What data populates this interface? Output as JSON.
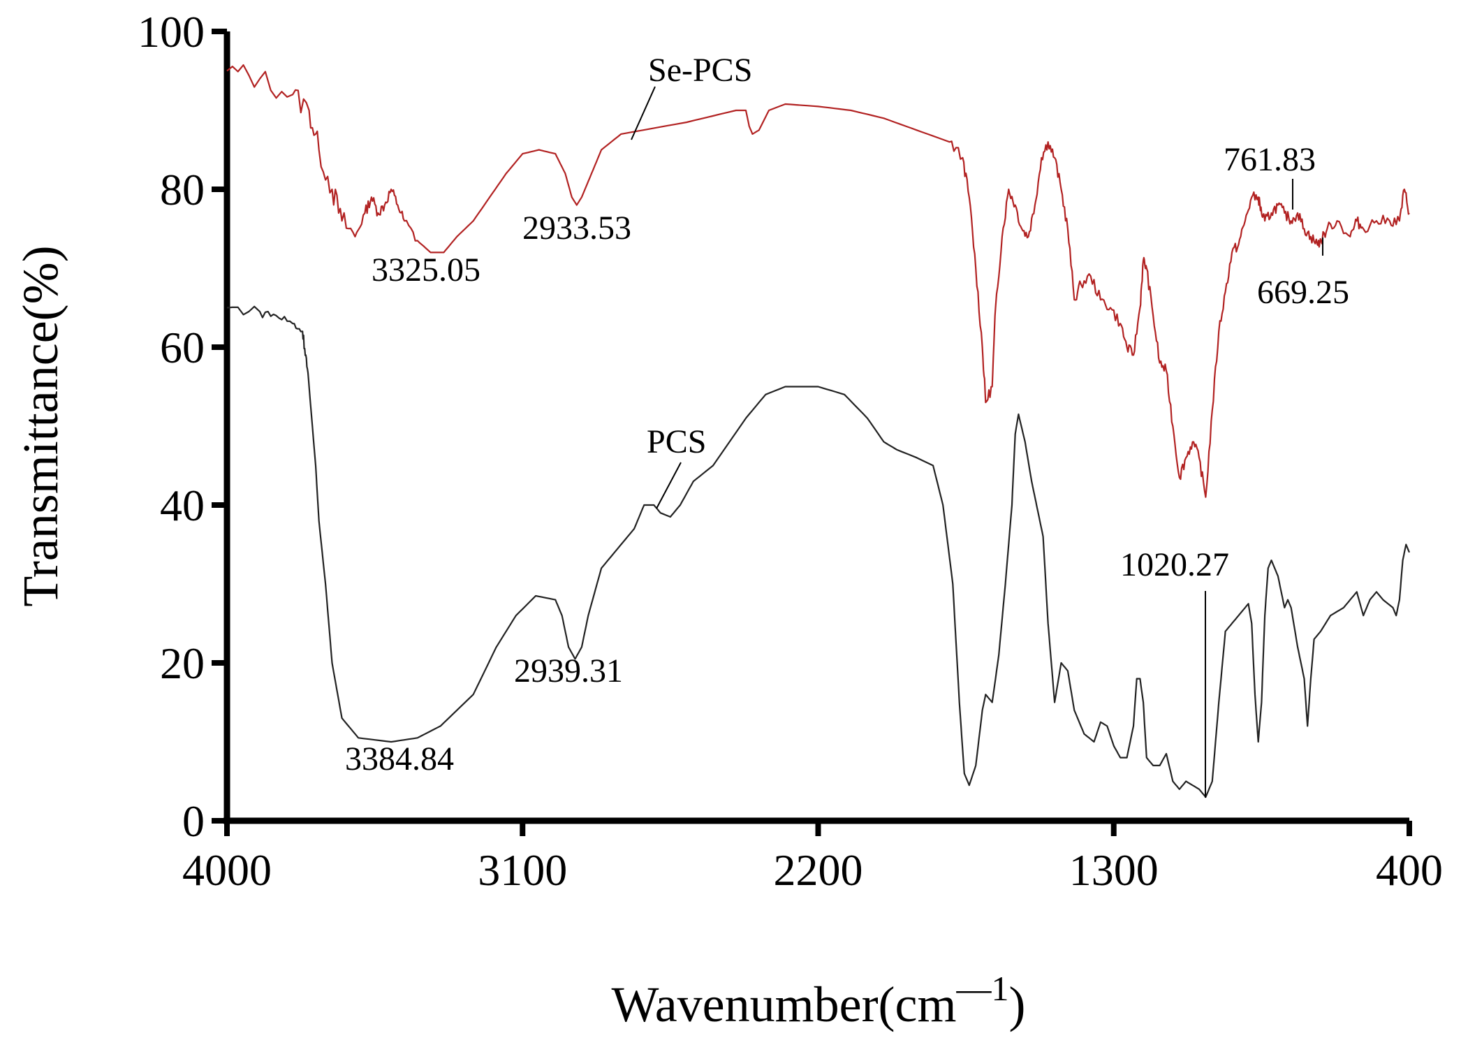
{
  "chart_data": {
    "type": "line",
    "xlabel": "Wavenumber(cm",
    "xlabel_sup": "—1",
    "xlabel_close": ")",
    "ylabel": "Transmittance(%)",
    "xlim": [
      4000,
      400
    ],
    "ylim": [
      0,
      100
    ],
    "x_reversed": true,
    "xticks": [
      4000,
      3100,
      2200,
      1300,
      400
    ],
    "yticks": [
      0,
      20,
      40,
      60,
      80,
      100
    ],
    "grid": false,
    "series": [
      {
        "name": "Se-PCS",
        "color": "#b22222",
        "points": [
          [
            4000,
            95
          ],
          [
            3900,
            94
          ],
          [
            3800,
            92
          ],
          [
            3750,
            90
          ],
          [
            3720,
            85
          ],
          [
            3680,
            80
          ],
          [
            3650,
            76
          ],
          [
            3610,
            74
          ],
          [
            3580,
            77
          ],
          [
            3560,
            79
          ],
          [
            3540,
            77
          ],
          [
            3520,
            78
          ],
          [
            3500,
            80
          ],
          [
            3480,
            78
          ],
          [
            3460,
            76
          ],
          [
            3420,
            73.5
          ],
          [
            3380,
            72
          ],
          [
            3340,
            72
          ],
          [
            3300,
            74
          ],
          [
            3250,
            76
          ],
          [
            3200,
            79
          ],
          [
            3150,
            82
          ],
          [
            3100,
            84.5
          ],
          [
            3050,
            85
          ],
          [
            3000,
            84.5
          ],
          [
            2970,
            82
          ],
          [
            2950,
            79
          ],
          [
            2935,
            78
          ],
          [
            2920,
            79
          ],
          [
            2890,
            82
          ],
          [
            2860,
            85
          ],
          [
            2800,
            87
          ],
          [
            2600,
            88.5
          ],
          [
            2450,
            90
          ],
          [
            2420,
            90
          ],
          [
            2410,
            88
          ],
          [
            2400,
            87
          ],
          [
            2380,
            87.5
          ],
          [
            2350,
            90
          ],
          [
            2300,
            90.8
          ],
          [
            2200,
            90.5
          ],
          [
            2100,
            90
          ],
          [
            2000,
            89
          ],
          [
            1900,
            87.5
          ],
          [
            1800,
            86
          ],
          [
            1760,
            84
          ],
          [
            1740,
            79
          ],
          [
            1720,
            70
          ],
          [
            1700,
            60
          ],
          [
            1690,
            53
          ],
          [
            1670,
            55
          ],
          [
            1660,
            65
          ],
          [
            1640,
            74
          ],
          [
            1620,
            80
          ],
          [
            1600,
            78
          ],
          [
            1580,
            75
          ],
          [
            1560,
            74
          ],
          [
            1540,
            78
          ],
          [
            1520,
            84
          ],
          [
            1500,
            86
          ],
          [
            1480,
            84
          ],
          [
            1460,
            80
          ],
          [
            1440,
            75
          ],
          [
            1420,
            66
          ],
          [
            1400,
            68
          ],
          [
            1370,
            69
          ],
          [
            1340,
            66
          ],
          [
            1310,
            65
          ],
          [
            1280,
            63
          ],
          [
            1260,
            60
          ],
          [
            1240,
            59
          ],
          [
            1220,
            65
          ],
          [
            1210,
            71
          ],
          [
            1200,
            70
          ],
          [
            1180,
            64
          ],
          [
            1160,
            58
          ],
          [
            1140,
            57
          ],
          [
            1120,
            50
          ],
          [
            1100,
            43.5
          ],
          [
            1080,
            46
          ],
          [
            1060,
            48
          ],
          [
            1040,
            46
          ],
          [
            1020,
            41
          ],
          [
            1000,
            52
          ],
          [
            980,
            62
          ],
          [
            960,
            67
          ],
          [
            940,
            72
          ],
          [
            920,
            73
          ],
          [
            900,
            76
          ],
          [
            880,
            79
          ],
          [
            860,
            79
          ],
          [
            850,
            77
          ],
          [
            840,
            76
          ],
          [
            820,
            77
          ],
          [
            800,
            78
          ],
          [
            780,
            77
          ],
          [
            760,
            76
          ],
          [
            740,
            77
          ],
          [
            720,
            75
          ],
          [
            700,
            74
          ],
          [
            680,
            73
          ],
          [
            669,
            73.5
          ],
          [
            650,
            75
          ],
          [
            620,
            76
          ],
          [
            580,
            74
          ],
          [
            560,
            76
          ],
          [
            540,
            75
          ],
          [
            500,
            76
          ],
          [
            460,
            76
          ],
          [
            430,
            76
          ],
          [
            415,
            80
          ],
          [
            400,
            77
          ]
        ]
      },
      {
        "name": "PCS",
        "color": "#222222",
        "points": [
          [
            4000,
            65
          ],
          [
            3900,
            64.5
          ],
          [
            3850,
            64
          ],
          [
            3800,
            63
          ],
          [
            3770,
            62
          ],
          [
            3760,
            59
          ],
          [
            3750,
            55
          ],
          [
            3730,
            45
          ],
          [
            3720,
            38
          ],
          [
            3700,
            30
          ],
          [
            3680,
            20
          ],
          [
            3650,
            13
          ],
          [
            3600,
            10.5
          ],
          [
            3500,
            10
          ],
          [
            3420,
            10.5
          ],
          [
            3350,
            12
          ],
          [
            3250,
            16
          ],
          [
            3180,
            22
          ],
          [
            3120,
            26
          ],
          [
            3060,
            28.5
          ],
          [
            3000,
            28
          ],
          [
            2980,
            26
          ],
          [
            2960,
            22
          ],
          [
            2940,
            20.5
          ],
          [
            2920,
            22
          ],
          [
            2900,
            26
          ],
          [
            2860,
            32
          ],
          [
            2800,
            35
          ],
          [
            2760,
            37
          ],
          [
            2730,
            40
          ],
          [
            2700,
            40
          ],
          [
            2680,
            39
          ],
          [
            2650,
            38.5
          ],
          [
            2620,
            40
          ],
          [
            2580,
            43
          ],
          [
            2520,
            45
          ],
          [
            2470,
            48
          ],
          [
            2420,
            51
          ],
          [
            2360,
            54
          ],
          [
            2300,
            55
          ],
          [
            2200,
            55
          ],
          [
            2120,
            54
          ],
          [
            2050,
            51
          ],
          [
            2000,
            48
          ],
          [
            1960,
            47
          ],
          [
            1900,
            46
          ],
          [
            1850,
            45
          ],
          [
            1820,
            40
          ],
          [
            1790,
            30
          ],
          [
            1770,
            15
          ],
          [
            1755,
            6
          ],
          [
            1740,
            4.5
          ],
          [
            1720,
            7
          ],
          [
            1700,
            14
          ],
          [
            1690,
            16
          ],
          [
            1670,
            15
          ],
          [
            1650,
            21
          ],
          [
            1630,
            30
          ],
          [
            1610,
            40
          ],
          [
            1600,
            49
          ],
          [
            1590,
            51.5
          ],
          [
            1570,
            48
          ],
          [
            1550,
            43
          ],
          [
            1540,
            41
          ],
          [
            1530,
            39
          ],
          [
            1515,
            36
          ],
          [
            1500,
            25
          ],
          [
            1480,
            15
          ],
          [
            1460,
            20
          ],
          [
            1440,
            19
          ],
          [
            1420,
            14
          ],
          [
            1390,
            11
          ],
          [
            1360,
            10
          ],
          [
            1340,
            12.5
          ],
          [
            1320,
            12
          ],
          [
            1300,
            9.5
          ],
          [
            1280,
            8
          ],
          [
            1260,
            8
          ],
          [
            1240,
            12
          ],
          [
            1230,
            18
          ],
          [
            1220,
            18
          ],
          [
            1210,
            15
          ],
          [
            1200,
            8
          ],
          [
            1180,
            7
          ],
          [
            1160,
            7
          ],
          [
            1140,
            8.5
          ],
          [
            1120,
            5
          ],
          [
            1100,
            4
          ],
          [
            1080,
            5
          ],
          [
            1060,
            4.5
          ],
          [
            1040,
            4
          ],
          [
            1020,
            3
          ],
          [
            1000,
            5
          ],
          [
            980,
            15
          ],
          [
            960,
            24
          ],
          [
            940,
            25
          ],
          [
            920,
            26
          ],
          [
            900,
            27
          ],
          [
            890,
            27.5
          ],
          [
            880,
            25
          ],
          [
            870,
            16
          ],
          [
            860,
            10
          ],
          [
            850,
            15
          ],
          [
            840,
            26
          ],
          [
            830,
            32
          ],
          [
            820,
            33
          ],
          [
            800,
            31
          ],
          [
            780,
            27
          ],
          [
            770,
            28
          ],
          [
            760,
            27
          ],
          [
            740,
            22
          ],
          [
            720,
            18
          ],
          [
            710,
            12
          ],
          [
            700,
            18
          ],
          [
            690,
            23
          ],
          [
            670,
            24
          ],
          [
            640,
            26
          ],
          [
            600,
            27
          ],
          [
            580,
            28
          ],
          [
            560,
            29
          ],
          [
            540,
            26
          ],
          [
            520,
            28
          ],
          [
            500,
            29
          ],
          [
            480,
            28
          ],
          [
            450,
            27
          ],
          [
            440,
            26
          ],
          [
            430,
            28
          ],
          [
            420,
            33
          ],
          [
            410,
            35
          ],
          [
            400,
            34
          ]
        ]
      }
    ],
    "annotations": [
      {
        "text": "Se-PCS",
        "series": "Se-PCS"
      },
      {
        "text": "PCS",
        "series": "PCS"
      },
      {
        "text": "3325.05",
        "series": "Se-PCS"
      },
      {
        "text": "2933.53",
        "series": "Se-PCS"
      },
      {
        "text": "761.83",
        "series": "Se-PCS"
      },
      {
        "text": "669.25",
        "series": "Se-PCS"
      },
      {
        "text": "3384.84",
        "series": "PCS"
      },
      {
        "text": "2939.31",
        "series": "PCS"
      },
      {
        "text": "1020.27",
        "series": "PCS"
      }
    ]
  }
}
